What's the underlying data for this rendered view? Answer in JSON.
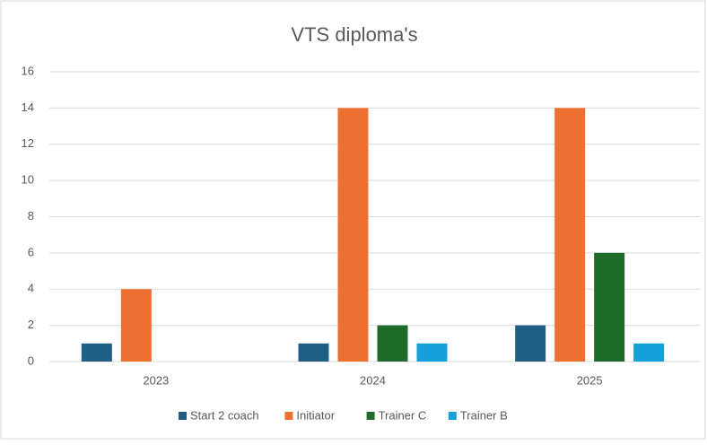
{
  "chart_data": {
    "type": "bar",
    "title": "VTS diploma's",
    "categories": [
      "2023",
      "2024",
      "2025"
    ],
    "series": [
      {
        "name": "Start 2 coach",
        "color": "#1f5f86",
        "values": [
          1,
          1,
          2
        ]
      },
      {
        "name": "Initiator",
        "color": "#ed7031",
        "values": [
          4,
          14,
          14
        ]
      },
      {
        "name": "Trainer C",
        "color": "#1e6b2a",
        "values": [
          0,
          2,
          6
        ]
      },
      {
        "name": "Trainer B",
        "color": "#14a0d8",
        "values": [
          0,
          1,
          1
        ]
      }
    ],
    "ylim": [
      0,
      16
    ],
    "yticks": [
      0,
      2,
      4,
      6,
      8,
      10,
      12,
      14,
      16
    ],
    "grid": true,
    "legend": "bottom"
  }
}
